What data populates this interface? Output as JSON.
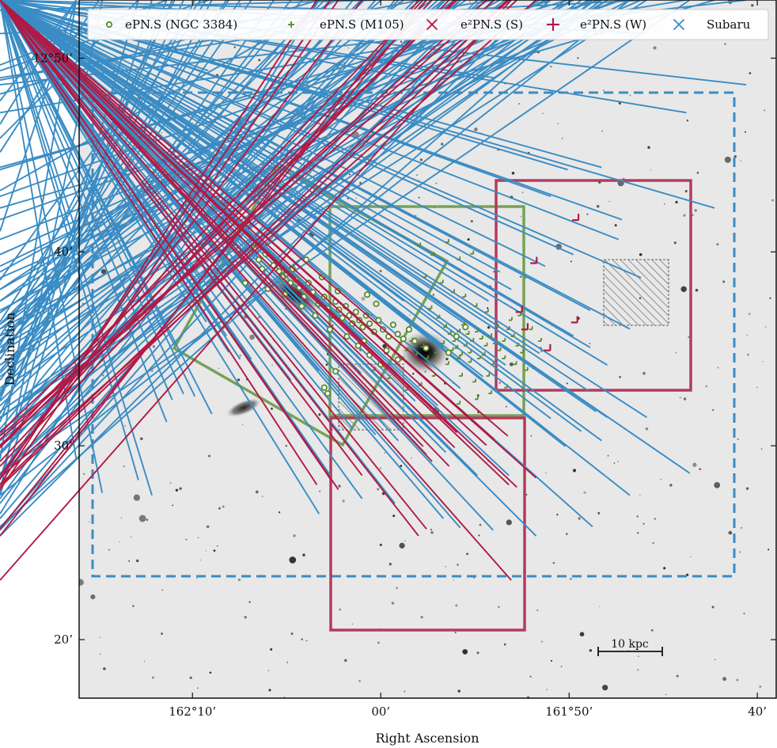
{
  "chart_data": {
    "type": "scatter",
    "xlabel": "Right Ascension",
    "ylabel": "Declination",
    "x_ticks": [
      {
        "value": 162.1667,
        "label": "162°10’"
      },
      {
        "value": 162.0,
        "label": "00’"
      },
      {
        "value": 161.8333,
        "label": "161°50’"
      },
      {
        "value": 161.6667,
        "label": "40’"
      }
    ],
    "y_ticks": [
      {
        "value": 12.8333,
        "label": "12°50’"
      },
      {
        "value": 12.6667,
        "label": "40’"
      },
      {
        "value": 12.5,
        "label": "30’"
      },
      {
        "value": 12.3333,
        "label": "20’"
      }
    ],
    "xlim": [
      162.267,
      161.65
    ],
    "ylim": [
      12.283,
      12.8833
    ],
    "legend_position": "top",
    "scale_bar_label": "10 kpc",
    "colors": {
      "green": "#5a8a2f",
      "red": "#b01a45",
      "blue": "#3a8cc4",
      "gray": "#888888"
    },
    "series": [
      {
        "name": "ePN.S (NGC 3384)",
        "marker": "circle-open",
        "color": "#5a8a2f",
        "points": [
          [
            162.112,
            12.67
          ],
          [
            162.108,
            12.66
          ],
          [
            162.102,
            12.665
          ],
          [
            162.095,
            12.655
          ],
          [
            162.09,
            12.65
          ],
          [
            162.087,
            12.645
          ],
          [
            162.083,
            12.648
          ],
          [
            162.08,
            12.64
          ],
          [
            162.078,
            12.652
          ],
          [
            162.075,
            12.643
          ],
          [
            162.072,
            12.636
          ],
          [
            162.068,
            12.628
          ],
          [
            162.064,
            12.64
          ],
          [
            162.06,
            12.632
          ],
          [
            162.055,
            12.622
          ],
          [
            162.05,
            12.628
          ],
          [
            162.047,
            12.618
          ],
          [
            162.043,
            12.612
          ],
          [
            162.04,
            12.624
          ],
          [
            162.037,
            12.617
          ],
          [
            162.034,
            12.61
          ],
          [
            162.031,
            12.62
          ],
          [
            162.028,
            12.612
          ],
          [
            162.025,
            12.605
          ],
          [
            162.022,
            12.615
          ],
          [
            162.019,
            12.608
          ],
          [
            162.016,
            12.602
          ],
          [
            162.013,
            12.612
          ],
          [
            162.01,
            12.605
          ],
          [
            162.006,
            12.598
          ],
          [
            162.002,
            12.608
          ],
          [
            161.998,
            12.6
          ],
          [
            161.993,
            12.594
          ],
          [
            161.989,
            12.604
          ],
          [
            161.985,
            12.596
          ],
          [
            161.98,
            12.592
          ],
          [
            161.975,
            12.6
          ],
          [
            161.97,
            12.59
          ],
          [
            162.12,
            12.64
          ],
          [
            162.1,
            12.635
          ],
          [
            162.085,
            12.63
          ],
          [
            162.07,
            12.62
          ],
          [
            162.058,
            12.612
          ],
          [
            162.045,
            12.6
          ],
          [
            162.03,
            12.594
          ],
          [
            162.02,
            12.586
          ],
          [
            162.01,
            12.578
          ],
          [
            162.0,
            12.57
          ],
          [
            162.04,
            12.564
          ],
          [
            162.05,
            12.55
          ],
          [
            162.047,
            12.545
          ],
          [
            162.015,
            12.59
          ],
          [
            161.995,
            12.582
          ],
          [
            161.985,
            12.574
          ],
          [
            161.96,
            12.584
          ],
          [
            161.94,
            12.58
          ],
          [
            161.933,
            12.594
          ],
          [
            161.925,
            12.602
          ],
          [
            162.105,
            12.652
          ],
          [
            162.066,
            12.66
          ],
          [
            162.052,
            12.645
          ],
          [
            162.038,
            12.633
          ],
          [
            162.012,
            12.63
          ],
          [
            162.004,
            12.622
          ]
        ]
      },
      {
        "name": "ePN.S (M105)",
        "marker": "plus-small",
        "color": "#5a8a2f",
        "points": [
          [
            161.965,
            12.672
          ],
          [
            161.953,
            12.664
          ],
          [
            161.94,
            12.675
          ],
          [
            161.93,
            12.66
          ],
          [
            161.918,
            12.665
          ],
          [
            161.96,
            12.645
          ],
          [
            161.945,
            12.64
          ],
          [
            161.935,
            12.632
          ],
          [
            161.925,
            12.628
          ],
          [
            161.915,
            12.62
          ],
          [
            161.905,
            12.615
          ],
          [
            161.955,
            12.618
          ],
          [
            161.948,
            12.61
          ],
          [
            161.942,
            12.602
          ],
          [
            161.938,
            12.596
          ],
          [
            161.934,
            12.59
          ],
          [
            161.93,
            12.598
          ],
          [
            161.926,
            12.604
          ],
          [
            161.922,
            12.596
          ],
          [
            161.918,
            12.59
          ],
          [
            161.914,
            12.598
          ],
          [
            161.91,
            12.592
          ],
          [
            161.906,
            12.586
          ],
          [
            161.902,
            12.594
          ],
          [
            161.898,
            12.588
          ],
          [
            161.894,
            12.582
          ],
          [
            161.89,
            12.59
          ],
          [
            161.886,
            12.6
          ],
          [
            161.882,
            12.594
          ],
          [
            161.878,
            12.586
          ],
          [
            161.874,
            12.58
          ],
          [
            161.944,
            12.588
          ],
          [
            161.95,
            12.58
          ],
          [
            161.958,
            12.575
          ],
          [
            161.962,
            12.585
          ],
          [
            161.968,
            12.578
          ],
          [
            161.972,
            12.59
          ],
          [
            161.976,
            12.582
          ],
          [
            161.98,
            12.574
          ],
          [
            161.94,
            12.57
          ],
          [
            161.93,
            12.575
          ],
          [
            161.92,
            12.58
          ],
          [
            161.912,
            12.575
          ],
          [
            161.9,
            12.57
          ],
          [
            161.89,
            12.575
          ],
          [
            161.88,
            12.57
          ],
          [
            161.87,
            12.565
          ],
          [
            161.928,
            12.56
          ],
          [
            161.916,
            12.555
          ],
          [
            161.904,
            12.56
          ],
          [
            161.952,
            12.56
          ],
          [
            161.964,
            12.552
          ],
          [
            161.976,
            12.548
          ],
          [
            161.992,
            12.558
          ],
          [
            162.005,
            12.565
          ],
          [
            161.936,
            12.582
          ],
          [
            161.924,
            12.586
          ],
          [
            161.928,
            12.578
          ],
          [
            161.932,
            12.584
          ],
          [
            161.92,
            12.572
          ],
          [
            161.908,
            12.578
          ],
          [
            161.896,
            12.602
          ],
          [
            161.884,
            12.608
          ],
          [
            161.876,
            12.612
          ],
          [
            161.866,
            12.6
          ],
          [
            161.858,
            12.59
          ],
          [
            161.902,
            12.545
          ],
          [
            161.888,
            12.55
          ],
          [
            161.914,
            12.54
          ],
          [
            161.93,
            12.536
          ]
        ]
      },
      {
        "name": "e²PN.S (S)",
        "marker": "x",
        "color": "#b01a45",
        "points": [
          [
            161.928,
            12.507
          ],
          [
            161.895,
            12.501
          ],
          [
            161.883,
            12.504
          ],
          [
            161.958,
            12.495
          ],
          [
            161.93,
            12.494
          ],
          [
            161.902,
            12.496
          ],
          [
            161.95,
            12.482
          ],
          [
            161.935,
            12.478
          ],
          [
            162.012,
            12.47
          ],
          [
            162.04,
            12.467
          ],
          [
            162.052,
            12.462
          ],
          [
            162.033,
            12.458
          ],
          [
            161.875,
            12.46
          ],
          [
            161.858,
            12.468
          ],
          [
            161.882,
            12.462
          ],
          [
            161.955,
            12.424
          ],
          [
            161.962,
            12.418
          ],
          [
            161.88,
            12.38
          ]
        ]
      },
      {
        "name": "e²PN.S (W)",
        "marker": "plus",
        "color": "#b01a45",
        "points": [
          [
            161.825,
            12.694
          ],
          [
            161.862,
            12.657
          ],
          [
            161.875,
            12.615
          ],
          [
            161.87,
            12.6
          ],
          [
            161.85,
            12.582
          ],
          [
            161.826,
            12.606
          ]
        ]
      },
      {
        "name": "Subaru",
        "marker": "x",
        "color": "#3a8cc4",
        "points": [
          [
            162.185,
            12.823
          ],
          [
            162.265,
            12.792
          ],
          [
            162.245,
            12.748
          ],
          [
            162.21,
            12.76
          ],
          [
            162.148,
            12.818
          ],
          [
            162.265,
            12.772
          ],
          [
            162.05,
            12.798
          ],
          [
            162.0,
            12.87
          ],
          [
            161.96,
            12.81
          ],
          [
            161.895,
            12.812
          ],
          [
            161.76,
            12.85
          ],
          [
            161.725,
            12.782
          ],
          [
            161.672,
            12.806
          ],
          [
            162.035,
            12.715
          ],
          [
            162.265,
            12.68
          ],
          [
            162.155,
            12.638
          ],
          [
            162.178,
            12.582
          ],
          [
            162.16,
            12.538
          ],
          [
            162.13,
            12.576
          ],
          [
            162.12,
            12.57
          ],
          [
            162.04,
            12.586
          ],
          [
            162.013,
            12.558
          ],
          [
            162.02,
            12.51
          ],
          [
            162.0,
            12.505
          ],
          [
            161.98,
            12.5
          ],
          [
            161.955,
            12.488
          ],
          [
            161.938,
            12.49
          ],
          [
            161.91,
            12.47
          ],
          [
            161.882,
            12.47
          ],
          [
            162.04,
            12.47
          ],
          [
            162.012,
            12.45
          ],
          [
            161.983,
            12.446
          ],
          [
            161.94,
            12.433
          ],
          [
            161.925,
            12.425
          ],
          [
            161.896,
            12.423
          ],
          [
            161.858,
            12.418
          ],
          [
            161.808,
            12.426
          ],
          [
            161.775,
            12.453
          ],
          [
            161.722,
            12.472
          ],
          [
            162.17,
            12.54
          ],
          [
            162.18,
            12.535
          ],
          [
            162.145,
            12.523
          ],
          [
            162.185,
            12.516
          ],
          [
            162.265,
            12.484
          ],
          [
            162.21,
            12.466
          ],
          [
            162.242,
            12.455
          ],
          [
            162.198,
            12.453
          ],
          [
            162.05,
            12.437
          ],
          [
            161.855,
            12.575
          ],
          [
            161.825,
            12.59
          ],
          [
            161.81,
            12.58
          ],
          [
            161.795,
            12.52
          ],
          [
            161.76,
            12.52
          ],
          [
            161.8,
            12.5
          ],
          [
            161.845,
            12.519
          ],
          [
            161.832,
            12.495
          ],
          [
            161.818,
            12.508
          ],
          [
            161.81,
            12.612
          ],
          [
            161.785,
            12.673
          ],
          [
            161.7,
            12.7
          ],
          [
            161.825,
            12.66
          ],
          [
            161.85,
            12.65
          ],
          [
            161.89,
            12.645
          ],
          [
            161.83,
            12.733
          ],
          [
            161.8,
            12.735
          ],
          [
            161.845,
            12.71
          ],
          [
            161.782,
            12.69
          ],
          [
            161.765,
            12.64
          ],
          [
            161.775,
            12.596
          ],
          [
            161.812,
            12.543
          ],
          [
            161.805,
            12.525
          ],
          [
            161.795,
            12.565
          ],
          [
            161.88,
            12.63
          ],
          [
            161.9,
            12.62
          ],
          [
            161.92,
            12.6
          ],
          [
            161.94,
            12.58
          ],
          [
            161.96,
            12.596
          ],
          [
            161.93,
            12.61
          ],
          [
            161.95,
            12.63
          ],
          [
            161.975,
            12.62
          ],
          [
            161.995,
            12.6
          ],
          [
            162.01,
            12.585
          ],
          [
            162.05,
            12.56
          ],
          [
            162.075,
            12.552
          ],
          [
            162.09,
            12.54
          ],
          [
            162.11,
            12.57
          ],
          [
            162.132,
            12.59
          ],
          [
            162.15,
            12.602
          ],
          [
            162.045,
            12.6
          ],
          [
            162.065,
            12.575
          ],
          [
            161.965,
            12.534
          ],
          [
            161.945,
            12.53
          ],
          [
            161.925,
            12.545
          ],
          [
            161.905,
            12.555
          ],
          [
            161.885,
            12.565
          ]
        ]
      }
    ]
  },
  "legend": {
    "entries": [
      {
        "label": "ePN.S (NGC 3384)"
      },
      {
        "label": "ePN.S (M105)"
      },
      {
        "label": "e²PN.S (S)"
      },
      {
        "label": "e²PN.S (W)"
      },
      {
        "label": "Subaru"
      }
    ]
  }
}
